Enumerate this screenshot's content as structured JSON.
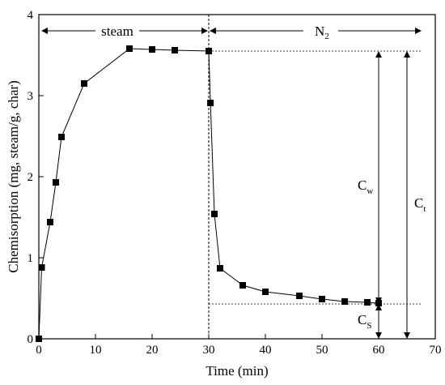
{
  "chart_data": {
    "type": "line",
    "title": "",
    "xlabel": "Time (min)",
    "ylabel": "Chemisorption (mg, steam/g, char)",
    "xlim": [
      0,
      70
    ],
    "ylim": [
      0,
      4
    ],
    "xticks": [
      0,
      10,
      20,
      30,
      40,
      50,
      60,
      70
    ],
    "yticks": [
      0,
      1,
      2,
      3,
      4
    ],
    "grid": false,
    "legend": "none",
    "series": [
      {
        "marker": "square",
        "color": "#000000",
        "points": [
          [
            0,
            0
          ],
          [
            0.5,
            0.88
          ],
          [
            2,
            1.44
          ],
          [
            3,
            1.93
          ],
          [
            4,
            2.49
          ],
          [
            8,
            3.15
          ],
          [
            16,
            3.58
          ],
          [
            20,
            3.57
          ],
          [
            24,
            3.56
          ],
          [
            30,
            3.55
          ],
          [
            30.3,
            2.91
          ],
          [
            31,
            1.54
          ],
          [
            32,
            0.87
          ],
          [
            36,
            0.66
          ],
          [
            40,
            0.58
          ],
          [
            46,
            0.53
          ],
          [
            50,
            0.49
          ],
          [
            54,
            0.46
          ],
          [
            58,
            0.45
          ],
          [
            60,
            0.44
          ]
        ]
      }
    ],
    "divider_x": 30,
    "reference_lines": {
      "upper_y": 3.55,
      "lower_y": 0.43
    },
    "annotations": {
      "steam": "steam",
      "n2_main": "N",
      "n2_sub": "2",
      "cw_main": "C",
      "cw_sub": "w",
      "ct_main": "C",
      "ct_sub": "t",
      "cs_main": "C",
      "cs_sub": "S"
    }
  }
}
